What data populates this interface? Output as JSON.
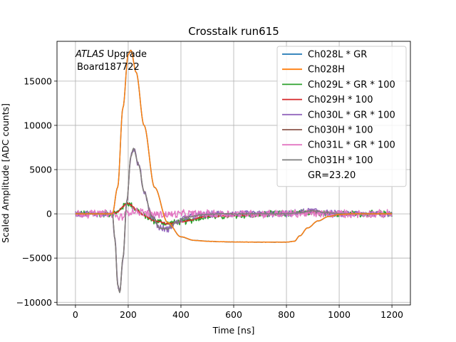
{
  "chart_data": {
    "type": "line",
    "title": "Crosstalk run615",
    "xlabel": "Time [ns]",
    "ylabel": "Scaled Amplitude [ADC counts]",
    "xlim": [
      -70,
      1270
    ],
    "ylim": [
      -10300,
      19500
    ],
    "xticks": [
      0,
      200,
      400,
      600,
      800,
      1000,
      1200
    ],
    "yticks": [
      -10000,
      -5000,
      0,
      5000,
      10000,
      15000
    ],
    "grid": true,
    "legend_position": "top-right",
    "annotation": {
      "italic": "ATLAS",
      "rest": " Upgrade",
      "line2": "Board187722"
    },
    "legend_extra": "GR=23.20",
    "x_range": [
      0,
      1200
    ],
    "series": [
      {
        "name": "Ch028L * GR",
        "color": "#1f77b4",
        "shape": "main",
        "amp": 1.0,
        "noise": 25
      },
      {
        "name": "Ch028H",
        "color": "#ff7f0e",
        "shape": "main",
        "amp": 1.0,
        "noise": 15
      },
      {
        "name": "Ch029L * GR * 100",
        "color": "#2ca02c",
        "shape": "small",
        "amp": 1.0,
        "noise": 420
      },
      {
        "name": "Ch029H * 100",
        "color": "#d62728",
        "shape": "small",
        "amp": 1.0,
        "noise": 80
      },
      {
        "name": "Ch030L * GR * 100",
        "color": "#9467bd",
        "shape": "xtalk",
        "amp": 1.0,
        "noise": 420
      },
      {
        "name": "Ch030H * 100",
        "color": "#8c564b",
        "shape": "xtalk",
        "amp": 1.0,
        "noise": 60
      },
      {
        "name": "Ch031L * GR * 100",
        "color": "#e377c2",
        "shape": "xtalk",
        "amp": 0.05,
        "noise": 520
      },
      {
        "name": "Ch031H * 100",
        "color": "#7f7f7f",
        "shape": "xtalk",
        "amp": 1.0,
        "noise": 70
      }
    ],
    "shapes": {
      "main": {
        "x": [
          0,
          140,
          160,
          180,
          200,
          210,
          230,
          260,
          300,
          350,
          400,
          450,
          500,
          550,
          600,
          700,
          800,
          830,
          850,
          880,
          920,
          960,
          1000,
          1050,
          1100,
          1200
        ],
        "y": [
          0,
          0,
          3000,
          12000,
          18000,
          18500,
          16000,
          10000,
          3000,
          -1000,
          -2600,
          -3000,
          -3100,
          -3150,
          -3180,
          -3200,
          -3200,
          -3100,
          -2500,
          -1600,
          -800,
          -300,
          -80,
          0,
          0,
          0
        ]
      },
      "xtalk": {
        "x": [
          0,
          140,
          150,
          160,
          168,
          180,
          195,
          210,
          220,
          240,
          260,
          290,
          320,
          350,
          380,
          420,
          480,
          550,
          800,
          850,
          900,
          950,
          1000,
          1200
        ],
        "y": [
          0,
          0,
          -3000,
          -8000,
          -8900,
          -5000,
          1500,
          6500,
          7400,
          5500,
          2500,
          -300,
          -1600,
          -1700,
          -1000,
          -400,
          -100,
          0,
          0,
          150,
          350,
          150,
          0,
          0
        ]
      },
      "small": {
        "x": [
          0,
          140,
          160,
          180,
          195,
          210,
          230,
          260,
          300,
          350,
          400,
          500,
          800,
          850,
          900,
          1000,
          1200
        ],
        "y": [
          0,
          0,
          200,
          800,
          1200,
          1000,
          500,
          -200,
          -800,
          -1100,
          -900,
          -300,
          0,
          100,
          200,
          0,
          0
        ]
      }
    }
  }
}
